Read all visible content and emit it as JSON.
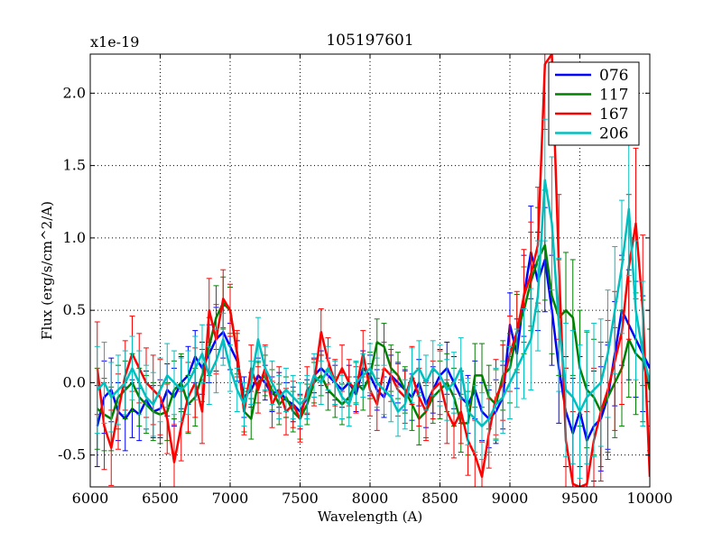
{
  "chart_data": {
    "type": "line",
    "title": "105197601",
    "xlabel": "Wavelength (A)",
    "ylabel": "Flux (erg/s/cm^2/A)",
    "offset_text": "x1e-19",
    "xlim": [
      6000,
      10000
    ],
    "ylim": [
      -0.72,
      2.27
    ],
    "xticks": [
      6000,
      6500,
      7000,
      7500,
      8000,
      8500,
      9000,
      9500,
      10000
    ],
    "xtick_labels": [
      "6000",
      "6500",
      "7000",
      "7500",
      "8000",
      "8500",
      "9000",
      "9500",
      "10000"
    ],
    "yticks": [
      -0.5,
      0.0,
      0.5,
      1.0,
      1.5,
      2.0
    ],
    "ytick_labels": [
      "-0.5",
      "0.0",
      "0.5",
      "1.0",
      "1.5",
      "2.0"
    ],
    "grid": true,
    "legend_position": "top-right",
    "error_bars": true,
    "series": [
      {
        "name": "076",
        "color": "#0000ff",
        "x": [
          6050,
          6100,
          6150,
          6200,
          6250,
          6300,
          6350,
          6400,
          6450,
          6500,
          6550,
          6600,
          6650,
          6700,
          6750,
          6800,
          6850,
          6900,
          6950,
          7000,
          7050,
          7100,
          7150,
          7200,
          7250,
          7300,
          7350,
          7400,
          7450,
          7500,
          7550,
          7600,
          7650,
          7700,
          7750,
          7800,
          7850,
          7900,
          7950,
          8000,
          8050,
          8100,
          8150,
          8200,
          8250,
          8300,
          8350,
          8400,
          8450,
          8500,
          8550,
          8600,
          8650,
          8700,
          8750,
          8800,
          8850,
          8900,
          8950,
          9000,
          9050,
          9100,
          9150,
          9200,
          9250,
          9300,
          9350,
          9400,
          9450,
          9500,
          9550,
          9600,
          9650,
          9700,
          9750,
          9800,
          9850,
          9900,
          9950,
          10000
        ],
        "y": [
          -0.3,
          -0.1,
          -0.05,
          -0.2,
          -0.25,
          -0.18,
          -0.22,
          -0.12,
          -0.2,
          -0.18,
          -0.05,
          -0.1,
          0.0,
          0.05,
          0.18,
          0.1,
          0.2,
          0.3,
          0.35,
          0.25,
          0.15,
          -0.1,
          -0.05,
          0.05,
          0.0,
          -0.08,
          -0.05,
          -0.12,
          -0.15,
          -0.2,
          -0.1,
          0.05,
          0.1,
          0.05,
          0.0,
          -0.05,
          0.0,
          -0.08,
          0.1,
          0.05,
          -0.05,
          -0.1,
          0.05,
          0.0,
          -0.05,
          -0.1,
          0.0,
          -0.15,
          -0.05,
          0.05,
          0.1,
          0.0,
          -0.1,
          -0.15,
          -0.05,
          -0.2,
          -0.25,
          -0.2,
          -0.1,
          0.4,
          0.2,
          0.6,
          0.9,
          0.7,
          0.85,
          0.5,
          0.1,
          -0.2,
          -0.35,
          -0.2,
          -0.4,
          -0.3,
          -0.25,
          -0.1,
          0.2,
          0.5,
          0.4,
          0.3,
          0.2,
          0.1
        ],
        "err": [
          0.28,
          0.25,
          0.22,
          0.2,
          0.22,
          0.2,
          0.18,
          0.2,
          0.18,
          0.2,
          0.18,
          0.2,
          0.18,
          0.2,
          0.18,
          0.18,
          0.2,
          0.22,
          0.18,
          0.16,
          0.14,
          0.14,
          0.12,
          0.12,
          0.12,
          0.12,
          0.12,
          0.12,
          0.12,
          0.12,
          0.12,
          0.12,
          0.12,
          0.12,
          0.12,
          0.12,
          0.12,
          0.12,
          0.12,
          0.14,
          0.14,
          0.14,
          0.14,
          0.14,
          0.14,
          0.16,
          0.16,
          0.16,
          0.16,
          0.18,
          0.18,
          0.18,
          0.18,
          0.2,
          0.2,
          0.2,
          0.2,
          0.22,
          0.22,
          0.22,
          0.24,
          0.28,
          0.32,
          0.34,
          0.36,
          0.38,
          0.38,
          0.38,
          0.38,
          0.38,
          0.38,
          0.38,
          0.36,
          0.36,
          0.36,
          0.38,
          0.38,
          0.4,
          0.4,
          0.4
        ]
      },
      {
        "name": "117",
        "color": "#008000",
        "x": [
          6050,
          6100,
          6150,
          6200,
          6250,
          6300,
          6350,
          6400,
          6450,
          6500,
          6550,
          6600,
          6650,
          6700,
          6750,
          6800,
          6850,
          6900,
          6950,
          7000,
          7050,
          7100,
          7150,
          7200,
          7250,
          7300,
          7350,
          7400,
          7450,
          7500,
          7550,
          7600,
          7650,
          7700,
          7750,
          7800,
          7850,
          7900,
          7950,
          8000,
          8050,
          8100,
          8150,
          8200,
          8250,
          8300,
          8350,
          8400,
          8450,
          8500,
          8550,
          8600,
          8650,
          8700,
          8750,
          8800,
          8850,
          8900,
          8950,
          9000,
          9050,
          9100,
          9150,
          9200,
          9250,
          9300,
          9350,
          9400,
          9450,
          9500,
          9550,
          9600,
          9650,
          9700,
          9750,
          9800,
          9850,
          9900,
          9950,
          10000
        ],
        "y": [
          -0.18,
          -0.22,
          -0.25,
          -0.1,
          -0.05,
          0.0,
          -0.1,
          -0.15,
          -0.2,
          -0.22,
          -0.2,
          -0.05,
          0.0,
          -0.15,
          -0.1,
          0.05,
          0.25,
          0.45,
          0.55,
          0.5,
          0.2,
          -0.2,
          -0.25,
          0.0,
          0.05,
          -0.05,
          -0.15,
          -0.1,
          -0.2,
          -0.25,
          -0.15,
          0.0,
          0.05,
          -0.05,
          -0.1,
          -0.15,
          -0.1,
          0.0,
          -0.05,
          0.05,
          0.28,
          0.25,
          0.1,
          0.05,
          -0.05,
          -0.15,
          -0.25,
          -0.2,
          -0.1,
          -0.05,
          0.0,
          -0.1,
          -0.28,
          -0.28,
          0.05,
          0.05,
          -0.1,
          -0.15,
          0.05,
          0.1,
          0.35,
          0.5,
          0.7,
          0.85,
          0.95,
          0.6,
          0.45,
          0.5,
          0.45,
          0.1,
          -0.05,
          -0.1,
          -0.2,
          -0.1,
          0.0,
          0.1,
          0.3,
          0.2,
          0.15,
          -0.05
        ],
        "err": [
          0.28,
          0.25,
          0.22,
          0.22,
          0.2,
          0.2,
          0.2,
          0.2,
          0.2,
          0.2,
          0.2,
          0.2,
          0.2,
          0.2,
          0.2,
          0.18,
          0.2,
          0.22,
          0.18,
          0.16,
          0.14,
          0.14,
          0.14,
          0.14,
          0.14,
          0.14,
          0.14,
          0.14,
          0.14,
          0.14,
          0.14,
          0.14,
          0.14,
          0.14,
          0.14,
          0.14,
          0.14,
          0.14,
          0.14,
          0.16,
          0.16,
          0.16,
          0.16,
          0.16,
          0.16,
          0.18,
          0.18,
          0.18,
          0.18,
          0.2,
          0.2,
          0.2,
          0.2,
          0.22,
          0.22,
          0.22,
          0.22,
          0.24,
          0.24,
          0.24,
          0.26,
          0.3,
          0.34,
          0.36,
          0.38,
          0.4,
          0.4,
          0.4,
          0.4,
          0.4,
          0.4,
          0.4,
          0.38,
          0.38,
          0.38,
          0.4,
          0.4,
          0.42,
          0.42,
          0.42
        ]
      },
      {
        "name": "167",
        "color": "#ff0000",
        "x": [
          6050,
          6100,
          6150,
          6200,
          6250,
          6300,
          6350,
          6400,
          6450,
          6500,
          6550,
          6600,
          6650,
          6700,
          6750,
          6800,
          6850,
          6900,
          6950,
          7000,
          7050,
          7100,
          7150,
          7200,
          7250,
          7300,
          7350,
          7400,
          7450,
          7500,
          7550,
          7600,
          7650,
          7700,
          7750,
          7800,
          7850,
          7900,
          7950,
          8000,
          8050,
          8100,
          8150,
          8200,
          8250,
          8300,
          8350,
          8400,
          8450,
          8500,
          8550,
          8600,
          8650,
          8700,
          8750,
          8800,
          8850,
          8900,
          8950,
          9000,
          9050,
          9100,
          9150,
          9200,
          9250,
          9300,
          9350,
          9400,
          9450,
          9500,
          9550,
          9600,
          9650,
          9700,
          9750,
          9800,
          9850,
          9900,
          9950,
          10000
        ],
        "y": [
          0.1,
          -0.3,
          -0.45,
          -0.2,
          0.05,
          0.2,
          0.1,
          0.0,
          -0.05,
          -0.1,
          -0.25,
          -0.55,
          -0.3,
          -0.1,
          0.0,
          -0.2,
          0.5,
          0.3,
          0.58,
          0.5,
          0.2,
          -0.2,
          0.1,
          -0.05,
          0.1,
          -0.15,
          -0.05,
          -0.2,
          -0.15,
          -0.25,
          -0.05,
          0.0,
          0.35,
          0.15,
          0.0,
          0.1,
          0.0,
          -0.05,
          0.2,
          -0.05,
          -0.15,
          0.1,
          0.05,
          -0.05,
          -0.1,
          0.05,
          -0.1,
          -0.2,
          -0.05,
          0.0,
          -0.2,
          -0.3,
          -0.2,
          -0.4,
          -0.5,
          -0.65,
          -0.35,
          -0.1,
          0.0,
          0.2,
          0.35,
          0.6,
          0.75,
          0.95,
          2.2,
          2.27,
          0.8,
          -0.4,
          -0.7,
          -0.72,
          -0.7,
          -0.4,
          -0.2,
          -0.05,
          0.15,
          0.35,
          0.8,
          1.1,
          0.5,
          -0.65
        ],
        "err": [
          0.32,
          0.3,
          0.26,
          0.26,
          0.24,
          0.26,
          0.24,
          0.24,
          0.24,
          0.26,
          0.24,
          0.26,
          0.24,
          0.24,
          0.24,
          0.22,
          0.22,
          0.24,
          0.2,
          0.18,
          0.16,
          0.16,
          0.16,
          0.16,
          0.16,
          0.16,
          0.16,
          0.16,
          0.16,
          0.16,
          0.16,
          0.16,
          0.16,
          0.16,
          0.16,
          0.16,
          0.16,
          0.16,
          0.16,
          0.18,
          0.18,
          0.18,
          0.18,
          0.18,
          0.18,
          0.2,
          0.2,
          0.2,
          0.2,
          0.22,
          0.22,
          0.22,
          0.22,
          0.24,
          0.24,
          0.24,
          0.24,
          0.26,
          0.26,
          0.26,
          0.28,
          0.32,
          0.36,
          0.4,
          0.45,
          0.5,
          0.5,
          0.5,
          0.5,
          0.5,
          0.5,
          0.5,
          0.48,
          0.48,
          0.48,
          0.5,
          0.5,
          0.52,
          0.52,
          0.52
        ]
      },
      {
        "name": "206",
        "color": "#00bfbf",
        "x": [
          6050,
          6100,
          6150,
          6200,
          6250,
          6300,
          6350,
          6400,
          6450,
          6500,
          6550,
          6600,
          6650,
          6700,
          6750,
          6800,
          6850,
          6900,
          6950,
          7000,
          7050,
          7100,
          7150,
          7200,
          7250,
          7300,
          7350,
          7400,
          7450,
          7500,
          7550,
          7600,
          7650,
          7700,
          7750,
          7800,
          7850,
          7900,
          7950,
          8000,
          8050,
          8100,
          8150,
          8200,
          8250,
          8300,
          8350,
          8400,
          8450,
          8500,
          8550,
          8600,
          8650,
          8700,
          8750,
          8800,
          8850,
          8900,
          8950,
          9000,
          9050,
          9100,
          9150,
          9200,
          9250,
          9300,
          9350,
          9400,
          9450,
          9500,
          9550,
          9600,
          9650,
          9700,
          9750,
          9800,
          9850,
          9900,
          9950,
          10000
        ],
        "y": [
          -0.05,
          0.0,
          -0.1,
          -0.05,
          0.0,
          0.1,
          0.0,
          -0.1,
          -0.15,
          -0.05,
          0.05,
          0.0,
          -0.05,
          0.0,
          0.1,
          0.2,
          0.05,
          0.15,
          0.3,
          0.1,
          -0.05,
          -0.15,
          0.0,
          0.3,
          0.1,
          0.0,
          -0.1,
          -0.05,
          -0.1,
          -0.15,
          -0.1,
          0.05,
          0.0,
          0.1,
          0.0,
          -0.1,
          -0.15,
          0.0,
          0.05,
          0.1,
          0.0,
          -0.05,
          -0.1,
          -0.2,
          -0.15,
          0.05,
          0.1,
          0.0,
          0.1,
          0.05,
          -0.05,
          0.0,
          0.1,
          -0.2,
          -0.25,
          -0.3,
          -0.25,
          -0.15,
          -0.1,
          0.0,
          0.1,
          0.2,
          0.3,
          0.6,
          1.4,
          1.1,
          0.4,
          -0.05,
          -0.1,
          -0.2,
          -0.1,
          -0.05,
          0.0,
          0.2,
          0.5,
          0.8,
          1.2,
          0.5,
          0.2,
          0.0
        ],
        "err": [
          0.3,
          0.28,
          0.24,
          0.24,
          0.22,
          0.22,
          0.22,
          0.22,
          0.22,
          0.22,
          0.22,
          0.22,
          0.22,
          0.22,
          0.22,
          0.2,
          0.2,
          0.22,
          0.18,
          0.16,
          0.15,
          0.15,
          0.15,
          0.15,
          0.15,
          0.15,
          0.15,
          0.15,
          0.15,
          0.15,
          0.15,
          0.15,
          0.15,
          0.15,
          0.15,
          0.15,
          0.15,
          0.15,
          0.15,
          0.17,
          0.17,
          0.17,
          0.17,
          0.17,
          0.17,
          0.19,
          0.19,
          0.19,
          0.19,
          0.21,
          0.21,
          0.21,
          0.21,
          0.23,
          0.23,
          0.23,
          0.23,
          0.25,
          0.25,
          0.25,
          0.27,
          0.31,
          0.35,
          0.38,
          0.42,
          0.46,
          0.46,
          0.46,
          0.46,
          0.46,
          0.46,
          0.46,
          0.44,
          0.44,
          0.44,
          0.46,
          0.46,
          0.48,
          0.5,
          0.5
        ]
      }
    ]
  }
}
